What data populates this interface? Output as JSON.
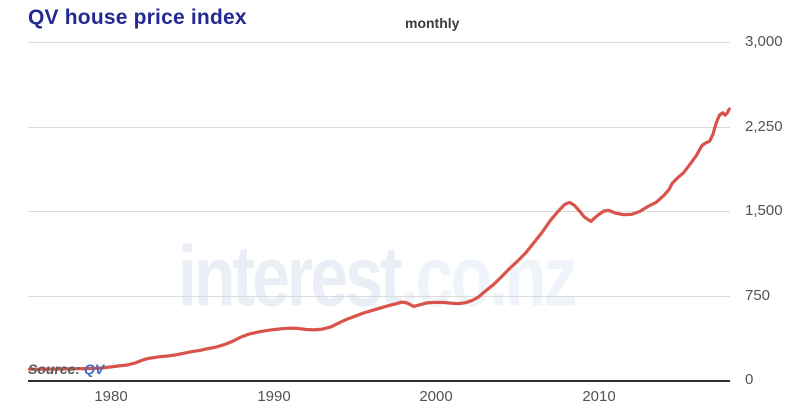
{
  "header": {
    "title": "QV house price index",
    "frequency_label": "monthly"
  },
  "watermark": {
    "part1": "interest",
    "part2": ".co.nz"
  },
  "source": {
    "prefix": "Source:",
    "link_label": "QV"
  },
  "colors": {
    "title": "#232a93",
    "line": "#d9534b",
    "grid": "#dadada",
    "axis": "#2e2e2e",
    "tick_label": "#555350",
    "source_link": "#3f6cc0",
    "watermark": "#e9eef7"
  },
  "chart_data": {
    "type": "line",
    "title": "QV house price index",
    "subtitle": "monthly",
    "legend": "none",
    "grid": "horizontal",
    "x_axis": {
      "ticks": [
        "1980",
        "1990",
        "2000",
        "2010"
      ],
      "tick_years": [
        1980,
        1990,
        2000,
        2010
      ],
      "range": [
        1974.9,
        2018.05
      ]
    },
    "y_axis": {
      "side": "right",
      "ticks": [
        "0",
        "750",
        "1,500",
        "2,250",
        "3,000"
      ],
      "tick_values": [
        0,
        750,
        1500,
        2250,
        3000
      ],
      "range": [
        0,
        3000
      ]
    },
    "series": [
      {
        "name": "QV house price index",
        "color": "#d9534b",
        "points": [
          [
            1975.0,
            97
          ],
          [
            1975.5,
            96
          ],
          [
            1976.0,
            97
          ],
          [
            1976.5,
            98
          ],
          [
            1977.0,
            98
          ],
          [
            1977.5,
            99
          ],
          [
            1978.0,
            100
          ],
          [
            1978.5,
            101
          ],
          [
            1979.0,
            103
          ],
          [
            1979.5,
            107
          ],
          [
            1980.0,
            116
          ],
          [
            1980.5,
            125
          ],
          [
            1981.0,
            133
          ],
          [
            1981.5,
            152
          ],
          [
            1982.0,
            180
          ],
          [
            1982.3,
            192
          ],
          [
            1982.7,
            201
          ],
          [
            1983.0,
            207
          ],
          [
            1983.5,
            213
          ],
          [
            1984.0,
            224
          ],
          [
            1984.5,
            238
          ],
          [
            1985.0,
            252
          ],
          [
            1985.5,
            264
          ],
          [
            1986.0,
            280
          ],
          [
            1986.5,
            294
          ],
          [
            1987.0,
            316
          ],
          [
            1987.5,
            345
          ],
          [
            1988.0,
            382
          ],
          [
            1988.5,
            408
          ],
          [
            1989.0,
            424
          ],
          [
            1989.5,
            438
          ],
          [
            1990.0,
            447
          ],
          [
            1990.5,
            455
          ],
          [
            1991.0,
            460
          ],
          [
            1991.5,
            458
          ],
          [
            1992.0,
            448
          ],
          [
            1992.5,
            445
          ],
          [
            1993.0,
            452
          ],
          [
            1993.5,
            470
          ],
          [
            1994.0,
            505
          ],
          [
            1994.5,
            540
          ],
          [
            1995.0,
            565
          ],
          [
            1995.5,
            594
          ],
          [
            1996.0,
            615
          ],
          [
            1996.5,
            636
          ],
          [
            1997.0,
            658
          ],
          [
            1997.5,
            676
          ],
          [
            1997.9,
            691
          ],
          [
            1998.2,
            683
          ],
          [
            1998.6,
            653
          ],
          [
            1999.0,
            668
          ],
          [
            1999.4,
            684
          ],
          [
            2000.0,
            690
          ],
          [
            2000.5,
            688
          ],
          [
            2001.0,
            681
          ],
          [
            2001.4,
            678
          ],
          [
            2001.8,
            686
          ],
          [
            2002.2,
            706
          ],
          [
            2002.6,
            737
          ],
          [
            2003.0,
            788
          ],
          [
            2003.5,
            845
          ],
          [
            2004.0,
            915
          ],
          [
            2004.5,
            990
          ],
          [
            2005.0,
            1056
          ],
          [
            2005.5,
            1130
          ],
          [
            2006.0,
            1220
          ],
          [
            2006.5,
            1310
          ],
          [
            2007.0,
            1415
          ],
          [
            2007.5,
            1500
          ],
          [
            2007.9,
            1560
          ],
          [
            2008.2,
            1576
          ],
          [
            2008.5,
            1548
          ],
          [
            2008.8,
            1500
          ],
          [
            2009.1,
            1446
          ],
          [
            2009.5,
            1408
          ],
          [
            2009.9,
            1460
          ],
          [
            2010.3,
            1500
          ],
          [
            2010.6,
            1505
          ],
          [
            2011.0,
            1482
          ],
          [
            2011.5,
            1467
          ],
          [
            2012.0,
            1470
          ],
          [
            2012.5,
            1496
          ],
          [
            2013.0,
            1540
          ],
          [
            2013.5,
            1576
          ],
          [
            2014.0,
            1640
          ],
          [
            2014.3,
            1690
          ],
          [
            2014.5,
            1745
          ],
          [
            2014.8,
            1790
          ],
          [
            2015.2,
            1840
          ],
          [
            2015.6,
            1915
          ],
          [
            2016.0,
            1995
          ],
          [
            2016.3,
            2075
          ],
          [
            2016.5,
            2100
          ],
          [
            2016.8,
            2120
          ],
          [
            2017.0,
            2180
          ],
          [
            2017.2,
            2280
          ],
          [
            2017.4,
            2350
          ],
          [
            2017.6,
            2372
          ],
          [
            2017.75,
            2350
          ],
          [
            2017.9,
            2375
          ],
          [
            2018.0,
            2405
          ]
        ]
      }
    ]
  }
}
